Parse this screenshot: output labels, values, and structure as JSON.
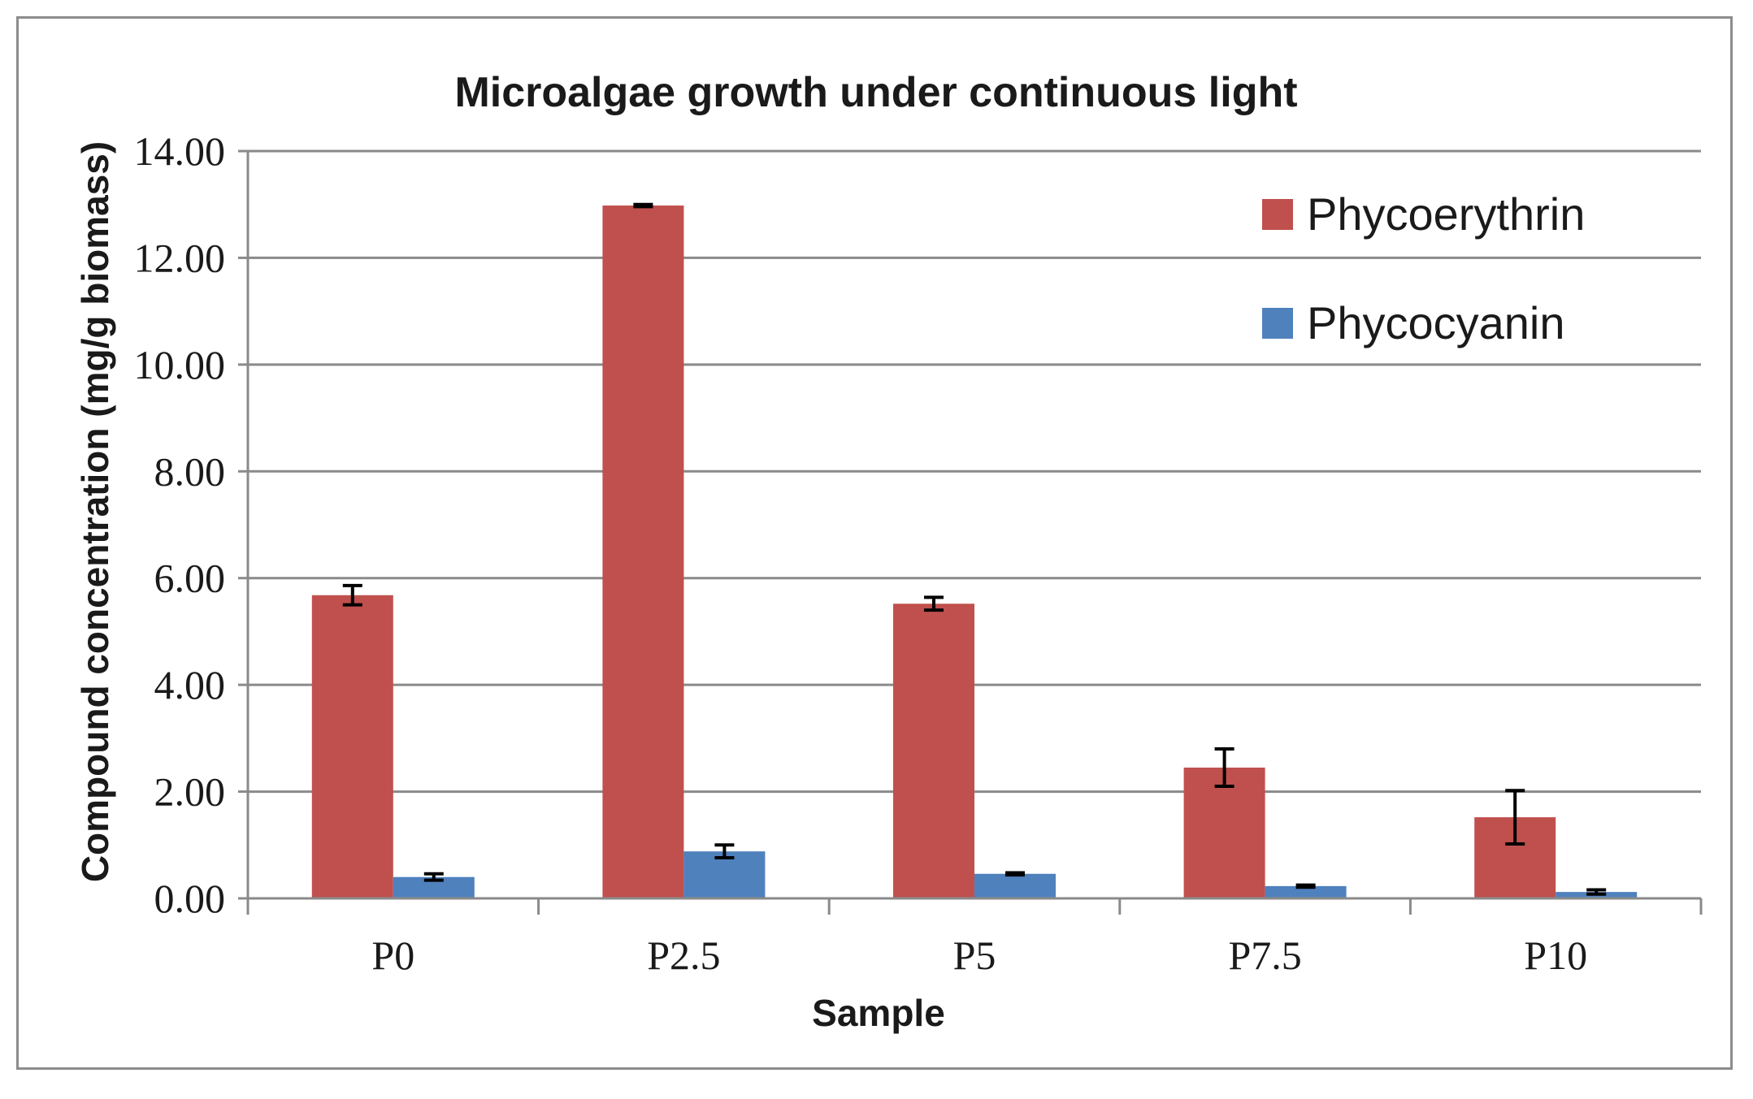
{
  "chart_data": {
    "type": "bar",
    "title": "Microalgae growth under continuous light",
    "xlabel": "Sample",
    "ylabel": "Compound concentration (mg/g biomass)",
    "categories": [
      "P0",
      "P2.5",
      "P5",
      "P7.5",
      "P10"
    ],
    "ylim": [
      0,
      14
    ],
    "yticks": [
      0,
      2,
      4,
      6,
      8,
      10,
      12,
      14
    ],
    "ytick_labels": [
      "0.00",
      "2.00",
      "4.00",
      "6.00",
      "8.00",
      "10.00",
      "12.00",
      "14.00"
    ],
    "grid": true,
    "legend_position": "top-right",
    "series": [
      {
        "name": "Phycoerythrin",
        "color": "#c0504d",
        "values": [
          5.68,
          12.98,
          5.52,
          2.45,
          1.52
        ],
        "errors": [
          0.18,
          0.02,
          0.12,
          0.35,
          0.5
        ]
      },
      {
        "name": "Phycocyanin",
        "color": "#4f81bd",
        "values": [
          0.4,
          0.88,
          0.46,
          0.23,
          0.12
        ],
        "errors": [
          0.06,
          0.12,
          0.02,
          0.02,
          0.04
        ]
      }
    ]
  }
}
